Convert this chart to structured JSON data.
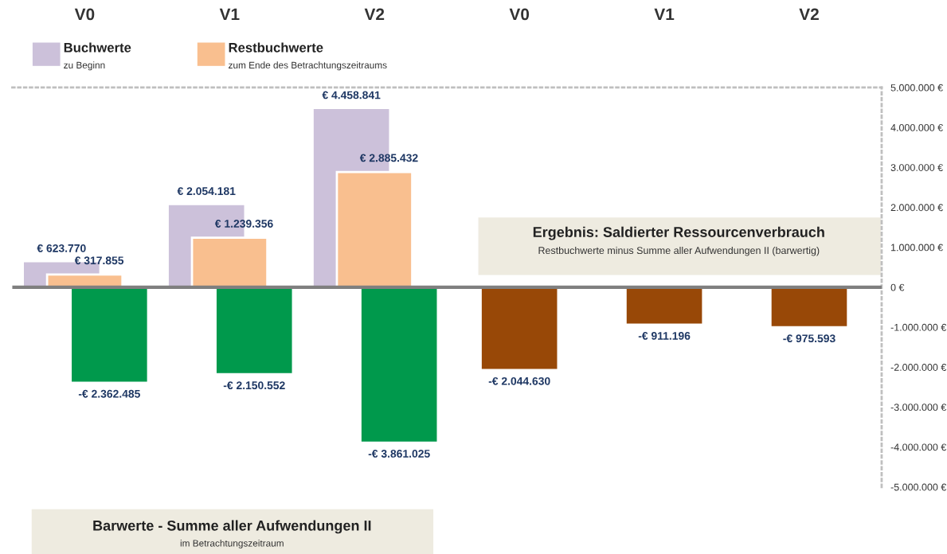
{
  "chart_data": {
    "type": "bar",
    "categories": [
      "V0",
      "V1",
      "V2",
      "V0",
      "V1",
      "V2"
    ],
    "series": [
      {
        "name": "Buchwerte",
        "color": "#ccc1da",
        "values": [
          623770,
          2054181,
          4458841,
          null,
          null,
          null
        ],
        "value_labels": [
          "€ 623.770",
          "€ 2.054.181",
          "€ 4.458.841",
          null,
          null,
          null
        ]
      },
      {
        "name": "Restbuchwerte",
        "color": "#f9bf8f",
        "values": [
          317855,
          1239356,
          2885432,
          null,
          null,
          null
        ],
        "value_labels": [
          "€ 317.855",
          "€ 1.239.356",
          "€ 2.885.432",
          null,
          null,
          null
        ]
      },
      {
        "color": "#00994c",
        "values": [
          -2362485,
          -2150552,
          -3861025,
          null,
          null,
          null
        ],
        "value_labels": [
          "-€ 2.362.485",
          "-€ 2.150.552",
          "-€ 3.861.025",
          null,
          null,
          null
        ]
      },
      {
        "color": "#984807",
        "values": [
          null,
          null,
          null,
          -2044630,
          -911196,
          -975593
        ],
        "value_labels": [
          null,
          null,
          null,
          "-€ 2.044.630",
          "-€ 911.196",
          "-€ 975.593"
        ]
      }
    ],
    "annotations": [
      "zu Beginn",
      "zum Ende des Betrachtungszeitraums",
      "Barwerte - Summe aller Aufwendungen II",
      "im Betrachtungszeitraum",
      "Ergebnis: Saldierter Ressourcenverbrauch",
      "Restbuchwerte minus Summe aller Aufwendungen II (barwertig)"
    ],
    "ylim": [
      -5000000,
      5000000
    ],
    "yticks": [
      {
        "value": -5000000,
        "label": "-5.000.000 €"
      },
      {
        "value": -4000000,
        "label": "-4.000.000 €"
      },
      {
        "value": -3000000,
        "label": "-3.000.000 €"
      },
      {
        "value": -2000000,
        "label": "-2.000.000 €"
      },
      {
        "value": -1000000,
        "label": "-1.000.000 €"
      },
      {
        "value": 0,
        "label": "0 €"
      },
      {
        "value": 1000000,
        "label": "1.000.000 €"
      },
      {
        "value": 2000000,
        "label": "2.000.000 €"
      },
      {
        "value": 3000000,
        "label": "3.000.000 €"
      },
      {
        "value": 4000000,
        "label": "4.000.000 €"
      },
      {
        "value": 5000000,
        "label": "5.000.000 €"
      }
    ],
    "ref_lines": [
      {
        "axis": "y",
        "value": 0,
        "color": "#7f7f7f"
      }
    ],
    "legend": "top left",
    "grid": false
  }
}
